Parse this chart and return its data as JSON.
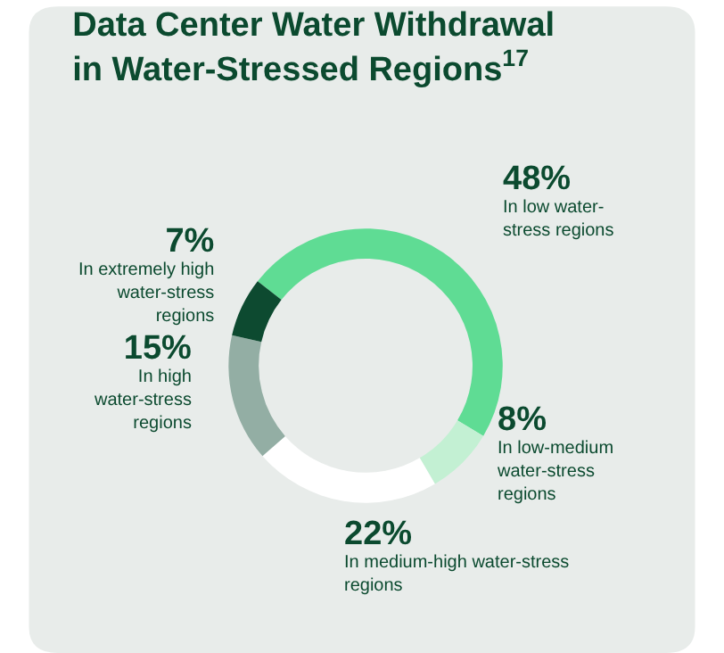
{
  "chart_data": {
    "type": "donut",
    "title": "Data Center Water Withdrawal in Water-Stressed Regions$^{17}$",
    "categories": [
      "In low water-stress regions",
      "In low-medium water-stress regions",
      "In medium-high water-stress regions",
      "In high water-stress regions",
      "In extremely high water-stress regions"
    ],
    "values": [
      48,
      8,
      22,
      15,
      7
    ],
    "colors": [
      "#5fdc94",
      "#c3f0d3",
      "#ffffff",
      "#93aea4",
      "#0d4a30"
    ],
    "value_labels": [
      "48%",
      "8%",
      "22%",
      "15%",
      "7%"
    ],
    "legend": false
  }
}
